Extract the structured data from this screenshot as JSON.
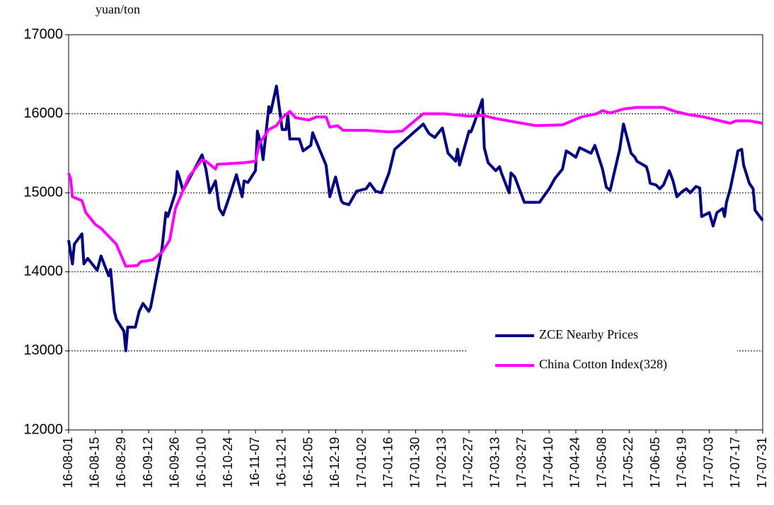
{
  "chart_data": {
    "type": "line",
    "y_label": "yuan/ton",
    "ylim": [
      12000,
      17000
    ],
    "yticks": [
      12000,
      13000,
      14000,
      15000,
      16000,
      17000
    ],
    "xlim": [
      "16-08-01",
      "17-07-31"
    ],
    "xticks": [
      "16-08-01",
      "16-08-15",
      "16-08-29",
      "16-09-12",
      "16-09-26",
      "16-10-10",
      "16-10-24",
      "16-11-07",
      "16-11-21",
      "16-12-05",
      "16-12-19",
      "17-01-02",
      "17-01-16",
      "17-01-30",
      "17-02-13",
      "17-02-27",
      "17-03-13",
      "17-03-27",
      "17-04-10",
      "17-04-24",
      "17-05-08",
      "17-05-22",
      "17-06-05",
      "17-06-19",
      "17-07-03",
      "17-07-17",
      "17-07-31"
    ],
    "grid": true,
    "legend": "lower right",
    "series": [
      {
        "name": "ZCE Nearby Prices",
        "color": "#000080",
        "x": [
          "16-08-01",
          "16-08-03",
          "16-08-04",
          "16-08-08",
          "16-08-09",
          "16-08-11",
          "16-08-16",
          "16-08-18",
          "16-08-22",
          "16-08-23",
          "16-08-25",
          "16-08-26",
          "16-08-30",
          "16-08-31",
          "16-09-01",
          "16-09-05",
          "16-09-07",
          "16-09-09",
          "16-09-12",
          "16-09-13",
          "16-09-19",
          "16-09-21",
          "16-09-22",
          "16-09-26",
          "16-09-27",
          "16-09-28",
          "16-09-30",
          "16-10-10",
          "16-10-12",
          "16-10-14",
          "16-10-17",
          "16-10-19",
          "16-10-21",
          "16-10-25",
          "16-10-28",
          "16-10-31",
          "16-11-01",
          "16-11-03",
          "16-11-07",
          "16-11-08",
          "16-11-10",
          "16-11-11",
          "16-11-14",
          "16-11-15",
          "16-11-18",
          "16-11-21",
          "16-11-23",
          "16-11-24",
          "16-11-25",
          "16-11-30",
          "16-12-02",
          "16-12-06",
          "16-12-07",
          "16-12-08",
          "16-12-14",
          "16-12-16",
          "16-12-19",
          "16-12-22",
          "16-12-23",
          "16-12-26",
          "16-12-30",
          "17-01-04",
          "17-01-06",
          "17-01-09",
          "17-01-12",
          "17-01-16",
          "17-01-19",
          "17-01-26",
          "17-02-03",
          "17-02-06",
          "17-02-09",
          "17-02-13",
          "17-02-16",
          "17-02-20",
          "17-02-21",
          "17-02-22",
          "17-02-27",
          "17-02-28",
          "17-03-02",
          "17-03-06",
          "17-03-07",
          "17-03-09",
          "17-03-13",
          "17-03-15",
          "17-03-16",
          "17-03-20",
          "17-03-21",
          "17-03-23",
          "17-03-28",
          "17-03-31",
          "17-04-05",
          "17-04-07",
          "17-04-10",
          "17-04-13",
          "17-04-17",
          "17-04-19",
          "17-04-21",
          "17-04-24",
          "17-04-26",
          "17-05-02",
          "17-05-04",
          "17-05-08",
          "17-05-10",
          "17-05-12",
          "17-05-17",
          "17-05-19",
          "17-05-23",
          "17-05-25",
          "17-05-26",
          "17-05-31",
          "17-06-01",
          "17-06-02",
          "17-06-05",
          "17-06-07",
          "17-06-09",
          "17-06-12",
          "17-06-14",
          "17-06-16",
          "17-06-19",
          "17-06-21",
          "17-06-23",
          "17-06-26",
          "17-06-28",
          "17-06-29",
          "17-07-03",
          "17-07-05",
          "17-07-07",
          "17-07-10",
          "17-07-11",
          "17-07-12",
          "17-07-14",
          "17-07-17",
          "17-07-18",
          "17-07-20",
          "17-07-21",
          "17-07-24",
          "17-07-26",
          "17-07-27",
          "17-07-31"
        ],
        "values": [
          14400,
          14100,
          14350,
          14480,
          14100,
          14170,
          14020,
          14200,
          13950,
          14030,
          13500,
          13400,
          13250,
          13000,
          13300,
          13300,
          13500,
          13600,
          13500,
          13550,
          14300,
          14750,
          14700,
          15000,
          15270,
          15200,
          15030,
          15480,
          15300,
          15000,
          15150,
          14800,
          14720,
          15000,
          15230,
          14950,
          15150,
          15130,
          15280,
          15780,
          15600,
          15420,
          16090,
          16020,
          16350,
          15800,
          15800,
          15980,
          15680,
          15680,
          15530,
          15600,
          15760,
          15700,
          15350,
          14950,
          15200,
          14900,
          14870,
          14850,
          15020,
          15050,
          15120,
          15020,
          15000,
          15250,
          15550,
          15700,
          15870,
          15750,
          15700,
          15820,
          15500,
          15400,
          15550,
          15350,
          15780,
          15770,
          15900,
          16180,
          15570,
          15380,
          15280,
          15330,
          15250,
          15000,
          15250,
          15200,
          14880,
          14880,
          14880,
          14950,
          15050,
          15180,
          15300,
          15530,
          15500,
          15450,
          15570,
          15500,
          15600,
          15300,
          15070,
          15030,
          15550,
          15870,
          15500,
          15450,
          15400,
          15330,
          15250,
          15120,
          15100,
          15050,
          15100,
          15280,
          15150,
          14950,
          15020,
          15050,
          15000,
          15080,
          15060,
          14700,
          14750,
          14580,
          14750,
          14800,
          14700,
          14880,
          15050,
          15400,
          15530,
          15550,
          15350,
          15120,
          15050,
          14780,
          14650
        ]
      },
      {
        "name": "China Cotton Index(328)",
        "color": "#ff00ff",
        "x": [
          "16-08-01",
          "16-08-02",
          "16-08-03",
          "16-08-08",
          "16-08-10",
          "16-08-15",
          "16-08-18",
          "16-08-22",
          "16-08-26",
          "16-08-31",
          "16-09-06",
          "16-09-08",
          "16-09-14",
          "16-09-19",
          "16-09-23",
          "16-09-26",
          "16-10-03",
          "16-10-10",
          "16-10-12",
          "16-10-17",
          "16-10-18",
          "16-10-25",
          "16-11-01",
          "16-11-07",
          "16-11-09",
          "16-11-14",
          "16-11-18",
          "16-11-21",
          "16-11-25",
          "16-11-28",
          "16-12-05",
          "16-12-09",
          "16-12-14",
          "16-12-16",
          "16-12-20",
          "16-12-23",
          "17-01-04",
          "17-01-16",
          "17-01-23",
          "17-02-03",
          "17-02-14",
          "17-02-27",
          "17-03-06",
          "17-03-13",
          "17-03-22",
          "17-04-03",
          "17-04-17",
          "17-04-27",
          "17-05-05",
          "17-05-08",
          "17-05-12",
          "17-05-19",
          "17-05-26",
          "17-06-05",
          "17-06-09",
          "17-06-15",
          "17-06-22",
          "17-06-30",
          "17-07-07",
          "17-07-14",
          "17-07-17",
          "17-07-24",
          "17-07-31"
        ],
        "values": [
          15250,
          15180,
          14950,
          14900,
          14750,
          14600,
          14550,
          14450,
          14350,
          14070,
          14080,
          14130,
          14150,
          14250,
          14400,
          14800,
          15200,
          15420,
          15400,
          15300,
          15360,
          15370,
          15380,
          15400,
          15620,
          15800,
          15850,
          15950,
          16030,
          15950,
          15920,
          15960,
          15960,
          15830,
          15850,
          15790,
          15790,
          15770,
          15780,
          16000,
          16000,
          15970,
          15980,
          15940,
          15900,
          15850,
          15860,
          15960,
          16000,
          16040,
          16010,
          16060,
          16080,
          16080,
          16080,
          16030,
          15990,
          15960,
          15920,
          15880,
          15910,
          15910,
          15880
        ]
      }
    ]
  }
}
